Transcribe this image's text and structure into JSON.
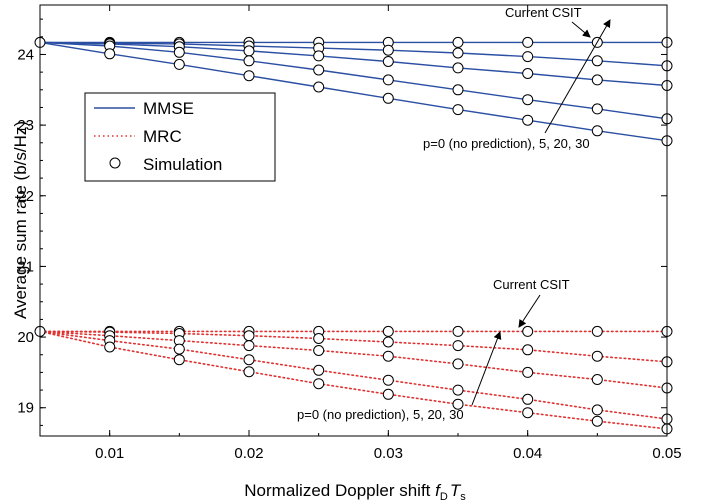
{
  "chart_data": {
    "type": "line",
    "title": "",
    "xlabel": "Normalized Doppler shift",
    "xlabel_math": {
      "f": "f",
      "D": "D",
      "T": "T",
      "s": "s"
    },
    "ylabel": "Average sum rate (b/s/Hz)",
    "xlim": [
      0.005,
      0.05
    ],
    "ylim": [
      18.6,
      24.7
    ],
    "x_ticks": [
      0.01,
      0.02,
      0.03,
      0.04,
      0.05
    ],
    "x_tick_labels": [
      "0.01",
      "0.02",
      "0.03",
      "0.04",
      "0.05"
    ],
    "y_ticks": [
      19,
      20,
      21,
      22,
      23,
      24
    ],
    "y_tick_labels": [
      "19",
      "20",
      "21",
      "22",
      "23",
      "24"
    ],
    "grid": false,
    "legend": {
      "placement": "upper-left",
      "entries": [
        {
          "label": "MMSE",
          "style": "solid",
          "color": "#2b4fa3"
        },
        {
          "label": "MRC",
          "style": "dotted",
          "color": "#e0302f"
        },
        {
          "label": "Simulation",
          "style": "circle-marker",
          "color": "#000000"
        }
      ]
    },
    "x": [
      0.005,
      0.01,
      0.015,
      0.02,
      0.025,
      0.03,
      0.035,
      0.04,
      0.045,
      0.05
    ],
    "series": [
      {
        "group": "MMSE",
        "case": "Current CSIT",
        "color": "#2b4fa3",
        "style": "solid",
        "values": [
          24.17,
          24.17,
          24.17,
          24.17,
          24.17,
          24.17,
          24.17,
          24.17,
          24.17,
          24.17
        ]
      },
      {
        "group": "MMSE",
        "case": "p=30",
        "color": "#2b4fa3",
        "style": "solid",
        "values": [
          24.17,
          24.16,
          24.15,
          24.12,
          24.09,
          24.06,
          24.02,
          23.97,
          23.91,
          23.84
        ]
      },
      {
        "group": "MMSE",
        "case": "p=20",
        "color": "#2b4fa3",
        "style": "solid",
        "values": [
          24.17,
          24.15,
          24.11,
          24.05,
          23.98,
          23.9,
          23.81,
          23.73,
          23.64,
          23.56
        ]
      },
      {
        "group": "MMSE",
        "case": "p=5",
        "color": "#2b4fa3",
        "style": "solid",
        "values": [
          24.17,
          24.12,
          24.03,
          23.91,
          23.78,
          23.64,
          23.5,
          23.36,
          23.23,
          23.09
        ]
      },
      {
        "group": "MMSE",
        "case": "p=0 (no prediction)",
        "color": "#2b4fa3",
        "style": "solid",
        "values": [
          24.17,
          24.01,
          23.86,
          23.7,
          23.54,
          23.38,
          23.22,
          23.07,
          22.92,
          22.78
        ]
      },
      {
        "group": "MRC",
        "case": "Current CSIT",
        "color": "#e0302f",
        "style": "dotted",
        "values": [
          20.08,
          20.08,
          20.08,
          20.08,
          20.08,
          20.08,
          20.08,
          20.08,
          20.08,
          20.08
        ]
      },
      {
        "group": "MRC",
        "case": "p=30",
        "color": "#e0302f",
        "style": "dotted",
        "values": [
          20.08,
          20.07,
          20.05,
          20.02,
          19.98,
          19.93,
          19.88,
          19.82,
          19.73,
          19.65
        ]
      },
      {
        "group": "MRC",
        "case": "p=20",
        "color": "#e0302f",
        "style": "dotted",
        "values": [
          20.08,
          20.02,
          19.95,
          19.88,
          19.81,
          19.73,
          19.62,
          19.5,
          19.4,
          19.28
        ]
      },
      {
        "group": "MRC",
        "case": "p=5",
        "color": "#e0302f",
        "style": "dotted",
        "values": [
          20.08,
          19.95,
          19.83,
          19.68,
          19.53,
          19.39,
          19.25,
          19.12,
          18.97,
          18.84
        ]
      },
      {
        "group": "MRC",
        "case": "p=0 (no prediction)",
        "color": "#e0302f",
        "style": "dotted",
        "values": [
          20.08,
          19.86,
          19.68,
          19.51,
          19.34,
          19.19,
          19.05,
          18.93,
          18.81,
          18.7
        ]
      }
    ],
    "simulation_x": [
      0.005,
      0.01,
      0.015,
      0.02,
      0.025,
      0.03,
      0.035,
      0.04,
      0.045,
      0.05
    ],
    "annotations": {
      "mmse_current": "Current CSIT",
      "mmse_p": "p=0 (no prediction), 5, 20, 30",
      "mrc_current": "Current CSIT",
      "mrc_p": "p=0 (no prediction), 5, 20, 30"
    }
  }
}
